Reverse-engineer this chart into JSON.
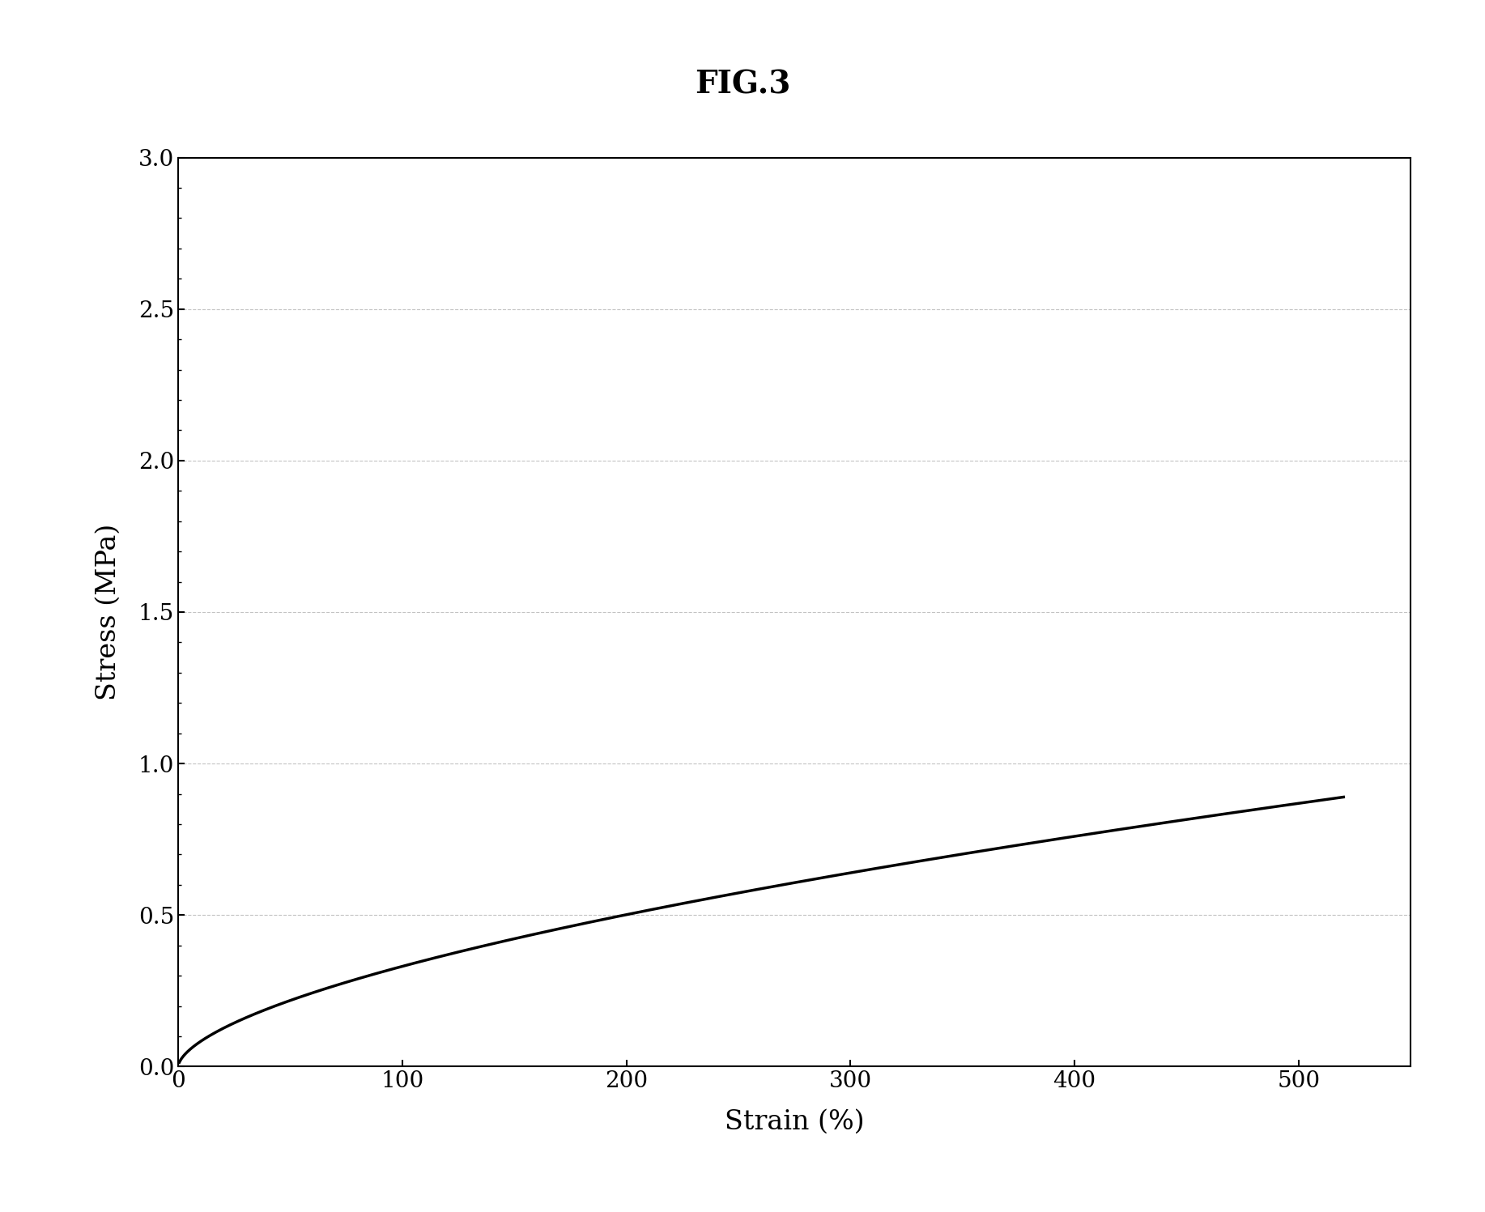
{
  "title": "FIG.3",
  "xlabel": "Strain (%)",
  "ylabel": "Stress (MPa)",
  "xlim": [
    0,
    550
  ],
  "ylim": [
    0.0,
    3.0
  ],
  "xticks": [
    0,
    100,
    200,
    300,
    400,
    500
  ],
  "yticks": [
    0.0,
    0.5,
    1.0,
    1.5,
    2.0,
    2.5,
    3.0
  ],
  "background_color": "#ffffff",
  "line_color": "#000000",
  "line_width": 2.5,
  "title_fontsize": 28,
  "axis_label_fontsize": 24,
  "tick_fontsize": 20,
  "grid_color": "#888888",
  "grid_linestyle": "--",
  "grid_linewidth": 0.8,
  "grid_alpha": 0.5,
  "curve_a": 0.02087,
  "curve_n": 0.6
}
